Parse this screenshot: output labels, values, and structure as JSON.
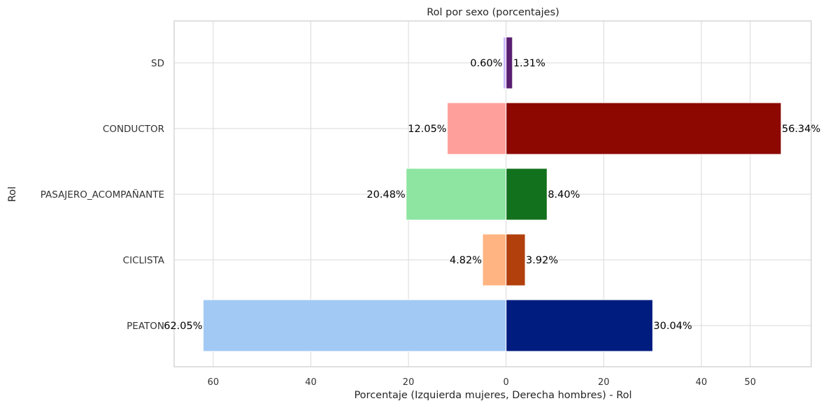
{
  "chart_data": {
    "type": "bar",
    "orientation": "horizontal-diverging",
    "title": "Rol por sexo (porcentajes)",
    "xlabel": "Porcentaje (Izquierda mujeres, Derecha hombres) - Rol",
    "ylabel": "Rol",
    "xlim": [
      -68,
      62.5
    ],
    "x_ticks": [
      -60,
      -40,
      -20,
      0,
      20,
      40,
      50
    ],
    "x_tick_labels": [
      "60",
      "40",
      "20",
      "0",
      "20",
      "40",
      "50"
    ],
    "grid": true,
    "categories": [
      "PEATON",
      "CICLISTA",
      "PASAJERO_ACOMPAÑANTE",
      "CONDUCTOR",
      "SD"
    ],
    "series": [
      {
        "side": "left",
        "values": [
          62.05,
          4.82,
          20.48,
          12.05,
          0.6
        ],
        "labels": [
          "62.05%",
          "4.82%",
          "20.48%",
          "12.05%",
          "0.60%"
        ],
        "colors": [
          "#a1c9f4",
          "#ffb482",
          "#8de5a1",
          "#ff9f9b",
          "#d0bbff"
        ]
      },
      {
        "side": "right",
        "values": [
          30.04,
          3.92,
          8.4,
          56.34,
          1.31
        ],
        "labels": [
          "30.04%",
          "3.92%",
          "8.40%",
          "56.34%",
          "1.31%"
        ],
        "colors": [
          "#001c7f",
          "#b1400d",
          "#12711c",
          "#8c0800",
          "#591e71"
        ]
      }
    ]
  }
}
